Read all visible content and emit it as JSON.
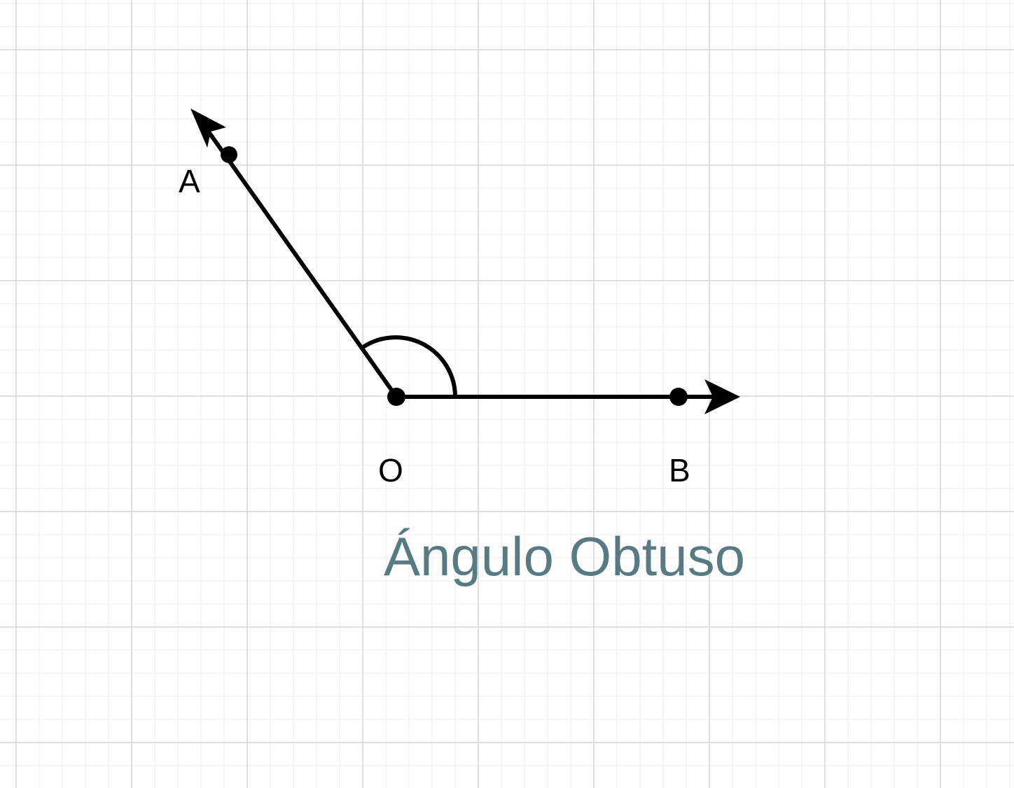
{
  "diagram": {
    "title": "Ángulo Obtuso",
    "labels": {
      "a": "A",
      "o": "O",
      "b": "B"
    }
  },
  "colors": {
    "background": "#ffffff",
    "grid_minor": "#eeeeee",
    "grid_major": "#d6d6d6",
    "stroke": "#000000",
    "title": "#587a83"
  }
}
